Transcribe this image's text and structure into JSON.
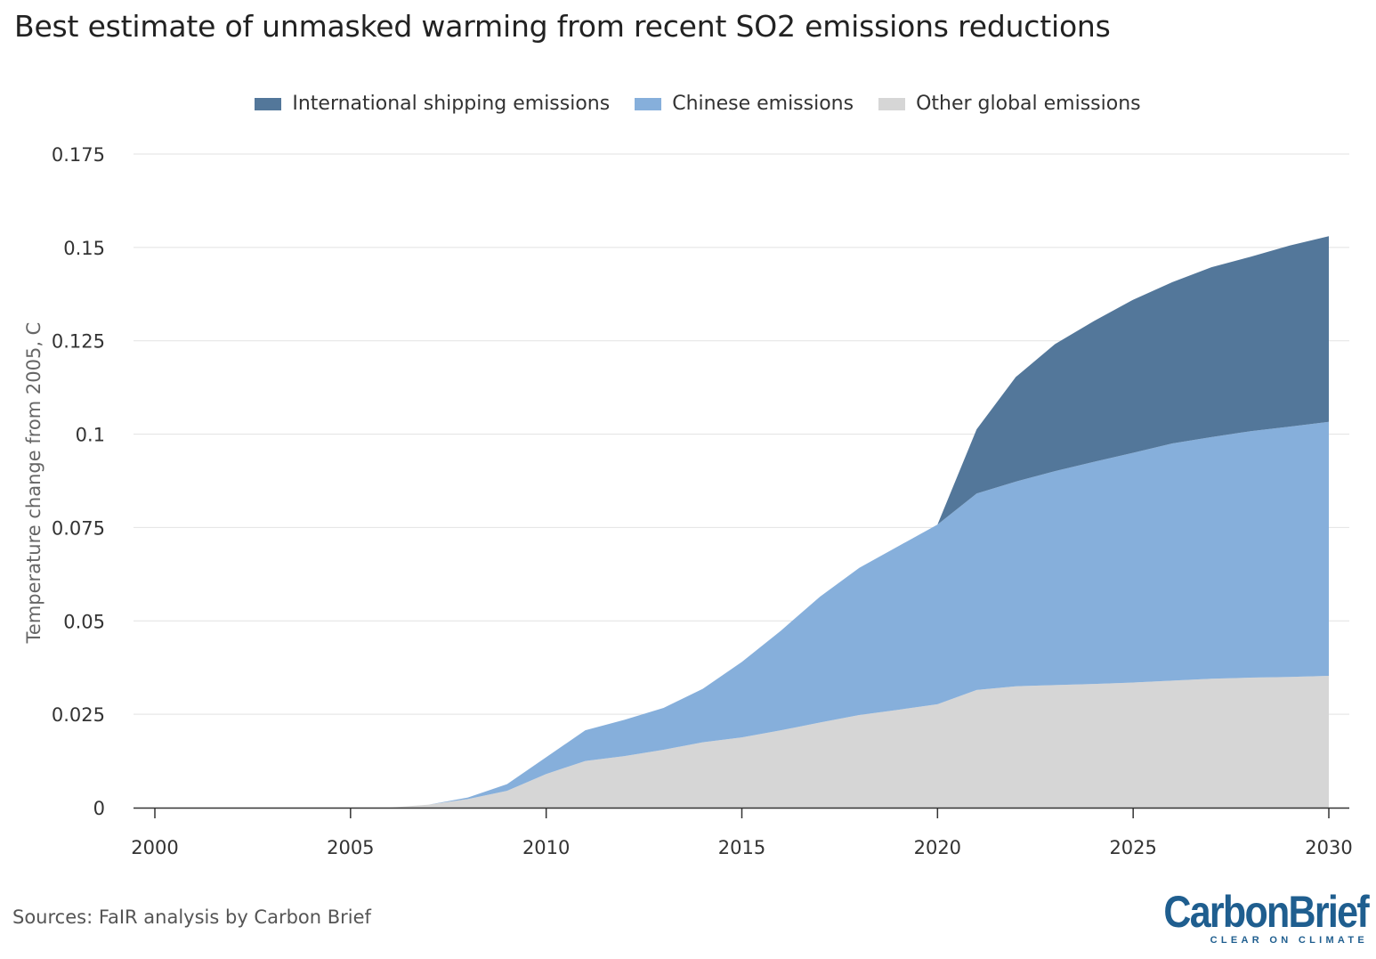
{
  "title": "Best estimate of unmasked warming from recent SO2 emissions reductions",
  "source": "Sources: FaIR analysis by Carbon Brief",
  "brand": {
    "name": "CarbonBrief",
    "tagline": "CLEAR ON CLIMATE",
    "color": "#1f5e8f"
  },
  "legend": [
    {
      "label": "International shipping emissions",
      "color": "#53779a"
    },
    {
      "label": "Chinese emissions",
      "color": "#86afdb"
    },
    {
      "label": "Other global emissions",
      "color": "#d6d6d6"
    }
  ],
  "chart_data": {
    "type": "area",
    "stacked": true,
    "title": "Best estimate of unmasked warming from recent SO2 emissions reductions",
    "xlabel": "",
    "ylabel": "Temperature change from 2005, C",
    "xlim": [
      2000,
      2030
    ],
    "ylim": [
      0,
      0.175
    ],
    "x_ticks": [
      "2000",
      "2005",
      "2010",
      "2015",
      "2020",
      "2025",
      "2030"
    ],
    "y_ticks": [
      "0",
      "0.025",
      "0.05",
      "0.075",
      "0.1",
      "0.125",
      "0.15",
      "0.175"
    ],
    "grid": "horizontal",
    "legend_position": "top-center",
    "x": [
      2005,
      2006,
      2007,
      2008,
      2009,
      2010,
      2011,
      2012,
      2013,
      2014,
      2015,
      2016,
      2017,
      2018,
      2019,
      2020,
      2021,
      2022,
      2023,
      2024,
      2025,
      2026,
      2027,
      2028,
      2029,
      2030
    ],
    "series": [
      {
        "name": "Other global emissions",
        "color": "#d6d6d6",
        "values": [
          0,
          0,
          0.0008,
          0.0023,
          0.0045,
          0.009,
          0.0125,
          0.0138,
          0.0155,
          0.0175,
          0.0188,
          0.0207,
          0.0228,
          0.0248,
          0.0262,
          0.0277,
          0.0315,
          0.0325,
          0.0328,
          0.0331,
          0.0335,
          0.034,
          0.0345,
          0.0348,
          0.035,
          0.0353
        ]
      },
      {
        "name": "Chinese emissions",
        "color": "#86afdb",
        "values": [
          0,
          0,
          0,
          0.0004,
          0.0018,
          0.0045,
          0.0082,
          0.0097,
          0.0112,
          0.0143,
          0.0202,
          0.0267,
          0.0337,
          0.0394,
          0.0438,
          0.0481,
          0.0526,
          0.0548,
          0.0573,
          0.0595,
          0.0615,
          0.0635,
          0.0647,
          0.066,
          0.067,
          0.068
        ]
      },
      {
        "name": "International shipping emissions",
        "color": "#53779a",
        "values": [
          0,
          0,
          0,
          0,
          0,
          0,
          0,
          0,
          0,
          0,
          0,
          0,
          0,
          0,
          0,
          0,
          0.0172,
          0.028,
          0.034,
          0.0377,
          0.041,
          0.0432,
          0.0455,
          0.0467,
          0.0485,
          0.0497
        ]
      }
    ]
  }
}
